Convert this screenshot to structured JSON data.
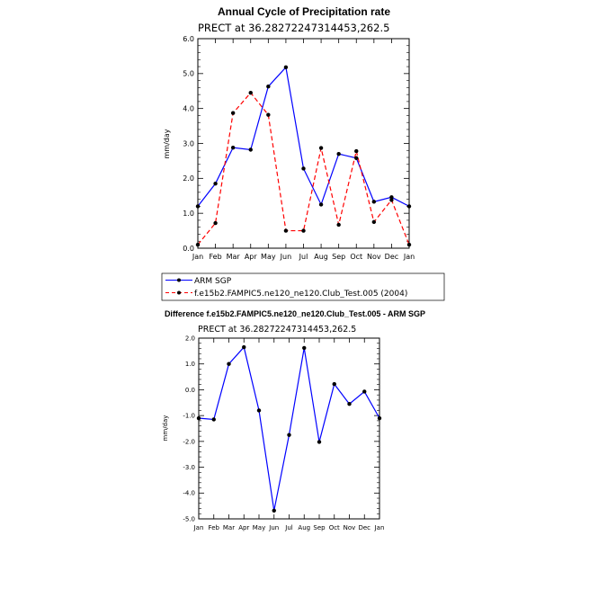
{
  "chart_data": [
    {
      "type": "line",
      "title": "Annual Cycle of Precipitation rate",
      "subtitle": "PRECT at 36.28272247314453,262.5",
      "xlabel": "",
      "ylabel": "mm/day",
      "categories": [
        "Jan",
        "Feb",
        "Mar",
        "Apr",
        "May",
        "Jun",
        "Jul",
        "Aug",
        "Sep",
        "Oct",
        "Nov",
        "Dec",
        "Jan"
      ],
      "ylim": [
        0,
        6
      ],
      "yticks": [
        "0.0",
        "1.0",
        "2.0",
        "3.0",
        "4.0",
        "5.0",
        "6.0"
      ],
      "grid": false,
      "legend_position": "bottom",
      "series": [
        {
          "name": "ARM SGP",
          "color": "#0000ff",
          "dash": "solid",
          "values": [
            1.2,
            1.85,
            2.88,
            2.82,
            4.63,
            5.18,
            2.28,
            1.25,
            2.7,
            2.58,
            1.33,
            1.46,
            1.2
          ]
        },
        {
          "name": "f.e15b2.FAMPIC5.ne120_ne120.Club_Test.005 (2004)",
          "color": "#ff0000",
          "dash": "dashed",
          "values": [
            0.1,
            0.72,
            3.87,
            4.45,
            3.82,
            0.5,
            0.5,
            2.87,
            0.67,
            2.78,
            0.75,
            1.38,
            0.1
          ]
        }
      ]
    },
    {
      "type": "line",
      "title": "Difference f.e15b2.FAMPIC5.ne120_ne120.Club_Test.005 - ARM SGP",
      "subtitle": "PRECT at 36.28272247314453,262.5",
      "xlabel": "",
      "ylabel": "mm/day",
      "categories": [
        "Jan",
        "Feb",
        "Mar",
        "Apr",
        "May",
        "Jun",
        "Jul",
        "Aug",
        "Sep",
        "Oct",
        "Nov",
        "Dec",
        "Jan"
      ],
      "ylim": [
        -5,
        2
      ],
      "yticks": [
        "-5.0",
        "-4.0",
        "-3.0",
        "-2.0",
        "-1.0",
        "0.0",
        "1.0",
        "2.0"
      ],
      "grid": false,
      "series": [
        {
          "name": "",
          "color": "#0000ff",
          "dash": "solid",
          "values": [
            -1.1,
            -1.15,
            1.0,
            1.65,
            -0.8,
            -4.68,
            -1.75,
            1.62,
            -2.02,
            0.22,
            -0.55,
            -0.07,
            -1.1
          ]
        }
      ]
    }
  ]
}
